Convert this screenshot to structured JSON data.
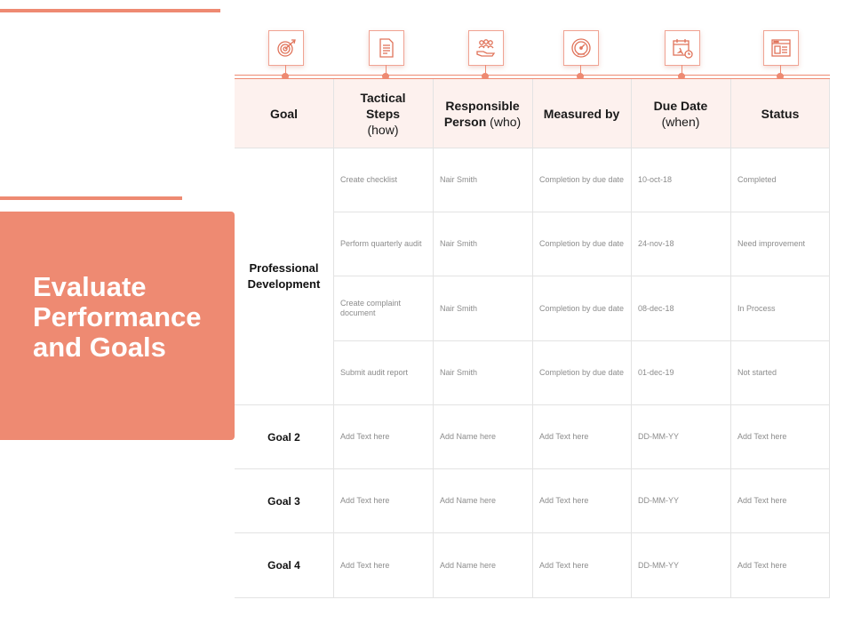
{
  "title": {
    "lines": [
      "Evaluate",
      "Performance",
      "and Goals"
    ]
  },
  "icons": [
    "target-icon",
    "document-icon",
    "team-icon",
    "gauge-icon",
    "calendar-icon",
    "status-window-icon"
  ],
  "colors": {
    "accent": "#ee8a72",
    "header_bg": "#fdf1ee"
  },
  "table": {
    "headers": [
      {
        "main": "Goal",
        "sub": ""
      },
      {
        "main": "Tactical Steps",
        "sub": "(how)"
      },
      {
        "main": "Responsible Person",
        "sub": "(who)"
      },
      {
        "main": "Measured by",
        "sub": ""
      },
      {
        "main": "Due Date",
        "sub": "(when)"
      },
      {
        "main": "Status",
        "sub": ""
      }
    ],
    "group1": {
      "goal": "Professional Development",
      "rows": [
        {
          "step": "Create checklist",
          "person": "Nair Smith",
          "measure": "Completion by due date",
          "due": "10-oct-18",
          "status": "Completed"
        },
        {
          "step": "Perform quarterly audit",
          "person": "Nair Smith",
          "measure": "Completion by due date",
          "due": "24-nov-18",
          "status": "Need improvement"
        },
        {
          "step": "Create complaint document",
          "person": "Nair Smith",
          "measure": "Completion by due date",
          "due": "08-dec-18",
          "status": "In Process"
        },
        {
          "step": "Submit audit report",
          "person": "Nair Smith",
          "measure": "Completion by due date",
          "due": "01-dec-19",
          "status": "Not started"
        }
      ]
    },
    "goal_rows": [
      {
        "goal": "Goal 2",
        "step": "Add Text here",
        "person": "Add Name here",
        "measure": "Add Text here",
        "due": "DD-MM-YY",
        "status": "Add Text here"
      },
      {
        "goal": "Goal 3",
        "step": "Add Text here",
        "person": "Add Name here",
        "measure": "Add Text here",
        "due": "DD-MM-YY",
        "status": "Add Text here"
      },
      {
        "goal": "Goal 4",
        "step": "Add Text here",
        "person": "Add Name here",
        "measure": "Add Text here",
        "due": "DD-MM-YY",
        "status": "Add Text here"
      }
    ]
  }
}
